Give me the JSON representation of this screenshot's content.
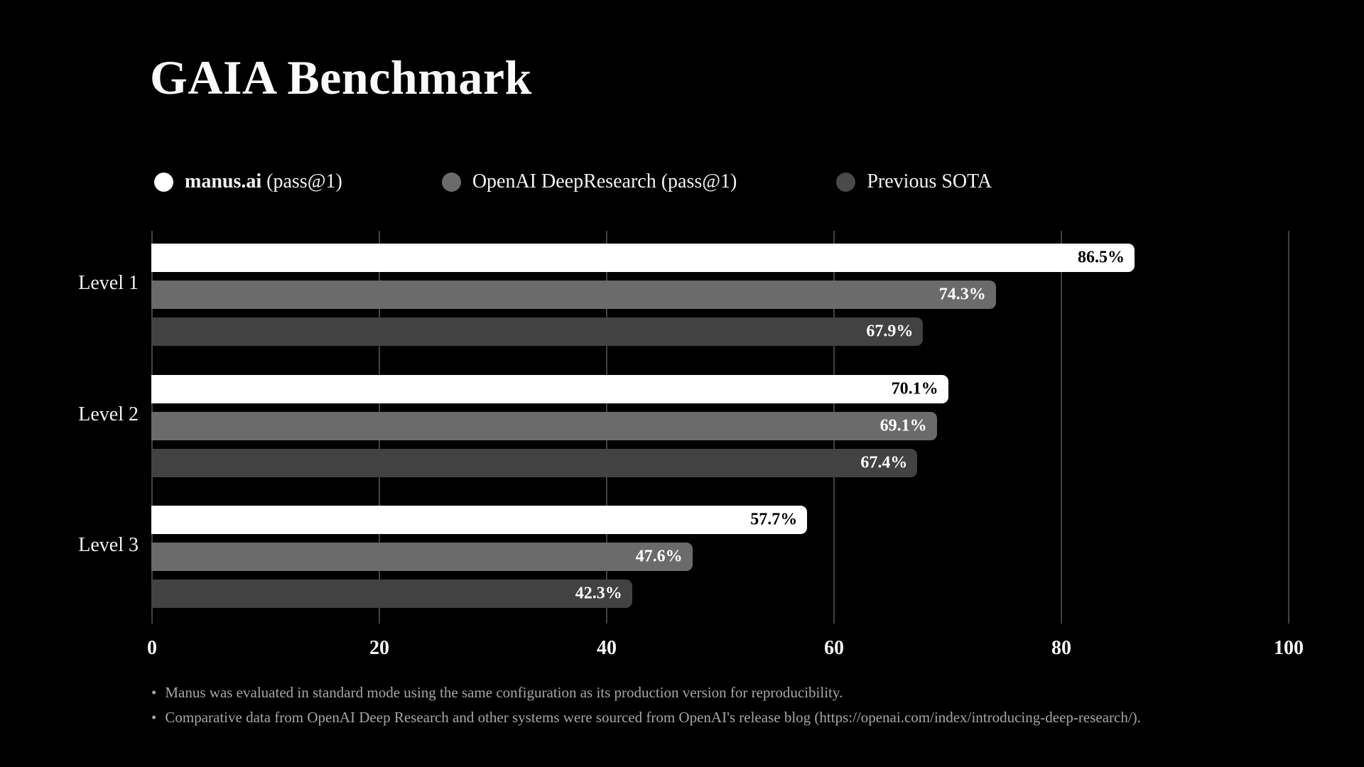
{
  "title": "GAIA Benchmark",
  "legend": [
    {
      "bold": "manus.ai",
      "rest": " (pass@1)",
      "color": "#ffffff"
    },
    {
      "bold": "",
      "rest": "OpenAI DeepResearch (pass@1)",
      "color": "#6b6b6b"
    },
    {
      "bold": "",
      "rest": "Previous SOTA",
      "color": "#4a4a4a"
    }
  ],
  "chart_data": {
    "type": "bar",
    "orientation": "horizontal",
    "title": "GAIA Benchmark",
    "categories": [
      "Level 1",
      "Level 2",
      "Level 3"
    ],
    "series": [
      {
        "name": "manus.ai (pass@1)",
        "color": "#ffffff",
        "label_color": "#000000",
        "values": [
          86.5,
          70.1,
          57.7
        ]
      },
      {
        "name": "OpenAI DeepResearch (pass@1)",
        "color": "#6b6b6b",
        "label_color": "#ffffff",
        "values": [
          74.3,
          69.1,
          47.6
        ]
      },
      {
        "name": "Previous SOTA",
        "color": "#424242",
        "label_color": "#ffffff",
        "values": [
          67.9,
          67.4,
          42.3
        ]
      }
    ],
    "value_suffix": "%",
    "xlim": [
      0,
      100
    ],
    "xticks": [
      0,
      20,
      40,
      60,
      80,
      100
    ],
    "grid": "vertical",
    "legend_position": "top",
    "background": "#000000",
    "gridline_color": "#414141"
  },
  "footnotes": [
    "Manus was evaluated in standard mode using the same configuration as its production version for reproducibility.",
    "Comparative data from OpenAI Deep Research and other systems were sourced from OpenAI's release blog (https://openai.com/index/introducing-deep-research/)."
  ]
}
